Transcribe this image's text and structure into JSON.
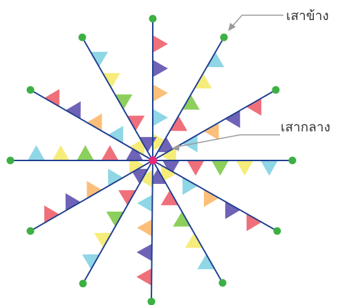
{
  "labels": {
    "side_pole": "เสาข้าง",
    "center_pole": "เสากลาง"
  },
  "colors": {
    "background": "#ffffff",
    "pole_line": "#1f3f8f",
    "pole_tip": "#3cb043",
    "center_dot": "#e6287a",
    "pointer": "#9a9a9a",
    "label_text": "#333333",
    "flags": [
      "#f6ec7a",
      "#8fd6e6",
      "#fbbf7a",
      "#6e63b7",
      "#ef6f7a",
      "#8ccf5c"
    ]
  },
  "diagram": {
    "type": "radial-flag-poles",
    "pole_count": 12,
    "tip_icon": "circle",
    "hub_icon": "circle"
  }
}
